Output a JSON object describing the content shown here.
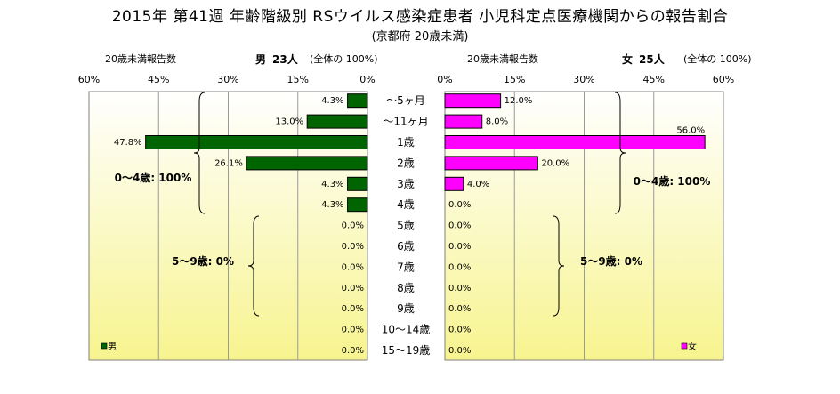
{
  "title": "2015年 第41週 年齢階級別 RSウイルス感染症患者 小児科定点医療機関からの報告割合",
  "subtitle": "(京都府 20歳未満)",
  "left_header": {
    "caption": "20歳未満報告数",
    "sex": "男",
    "count": "23人",
    "note": "(全体の 100%)"
  },
  "right_header": {
    "caption": "20歳未満報告数",
    "sex": "女",
    "count": "25人",
    "note": "(全体の 100%)"
  },
  "colors": {
    "male": "#006400",
    "female": "#ff00ff",
    "plot_top": "#ffffff",
    "plot_bottom": "#f7f48f",
    "grid": "#9a9a9a"
  },
  "chart_data": {
    "type": "bar",
    "orientation": "horizontal",
    "categories": [
      "〜5ヶ月",
      "〜11ヶ月",
      "1歳",
      "2歳",
      "3歳",
      "4歳",
      "5歳",
      "6歳",
      "7歳",
      "8歳",
      "9歳",
      "10〜14歳",
      "15〜19歳"
    ],
    "series": [
      {
        "name": "男",
        "values": [
          4.3,
          13.0,
          47.8,
          26.1,
          4.3,
          4.3,
          0.0,
          0.0,
          0.0,
          0.0,
          0.0,
          0.0,
          0.0
        ],
        "labels": [
          "4.3%",
          "13.0%",
          "47.8%",
          "26.1%",
          "4.3%",
          "4.3%",
          "0.0%",
          "0.0%",
          "0.0%",
          "0.0%",
          "0.0%",
          "0.0%",
          "0.0%"
        ]
      },
      {
        "name": "女",
        "values": [
          12.0,
          8.0,
          56.0,
          20.0,
          4.0,
          0.0,
          0.0,
          0.0,
          0.0,
          0.0,
          0.0,
          0.0,
          0.0
        ],
        "labels": [
          "12.0%",
          "8.0%",
          "56.0%",
          "20.0%",
          "4.0%",
          "0.0%",
          "0.0%",
          "0.0%",
          "0.0%",
          "0.0%",
          "0.0%",
          "0.0%",
          "0.0%"
        ]
      }
    ],
    "xlim": [
      0,
      60
    ],
    "ticks": [
      "60%",
      "45%",
      "30%",
      "15%",
      "0%"
    ],
    "ticks_right": [
      "0%",
      "15%",
      "30%",
      "45%",
      "60%"
    ],
    "annotations": {
      "left_0_4": "0〜4歳: 100%",
      "left_5_9": "5〜9歳: 0%",
      "right_0_4": "0〜4歳: 100%",
      "right_5_9": "5〜9歳: 0%"
    },
    "legend": {
      "male": "男",
      "female": "女"
    }
  }
}
